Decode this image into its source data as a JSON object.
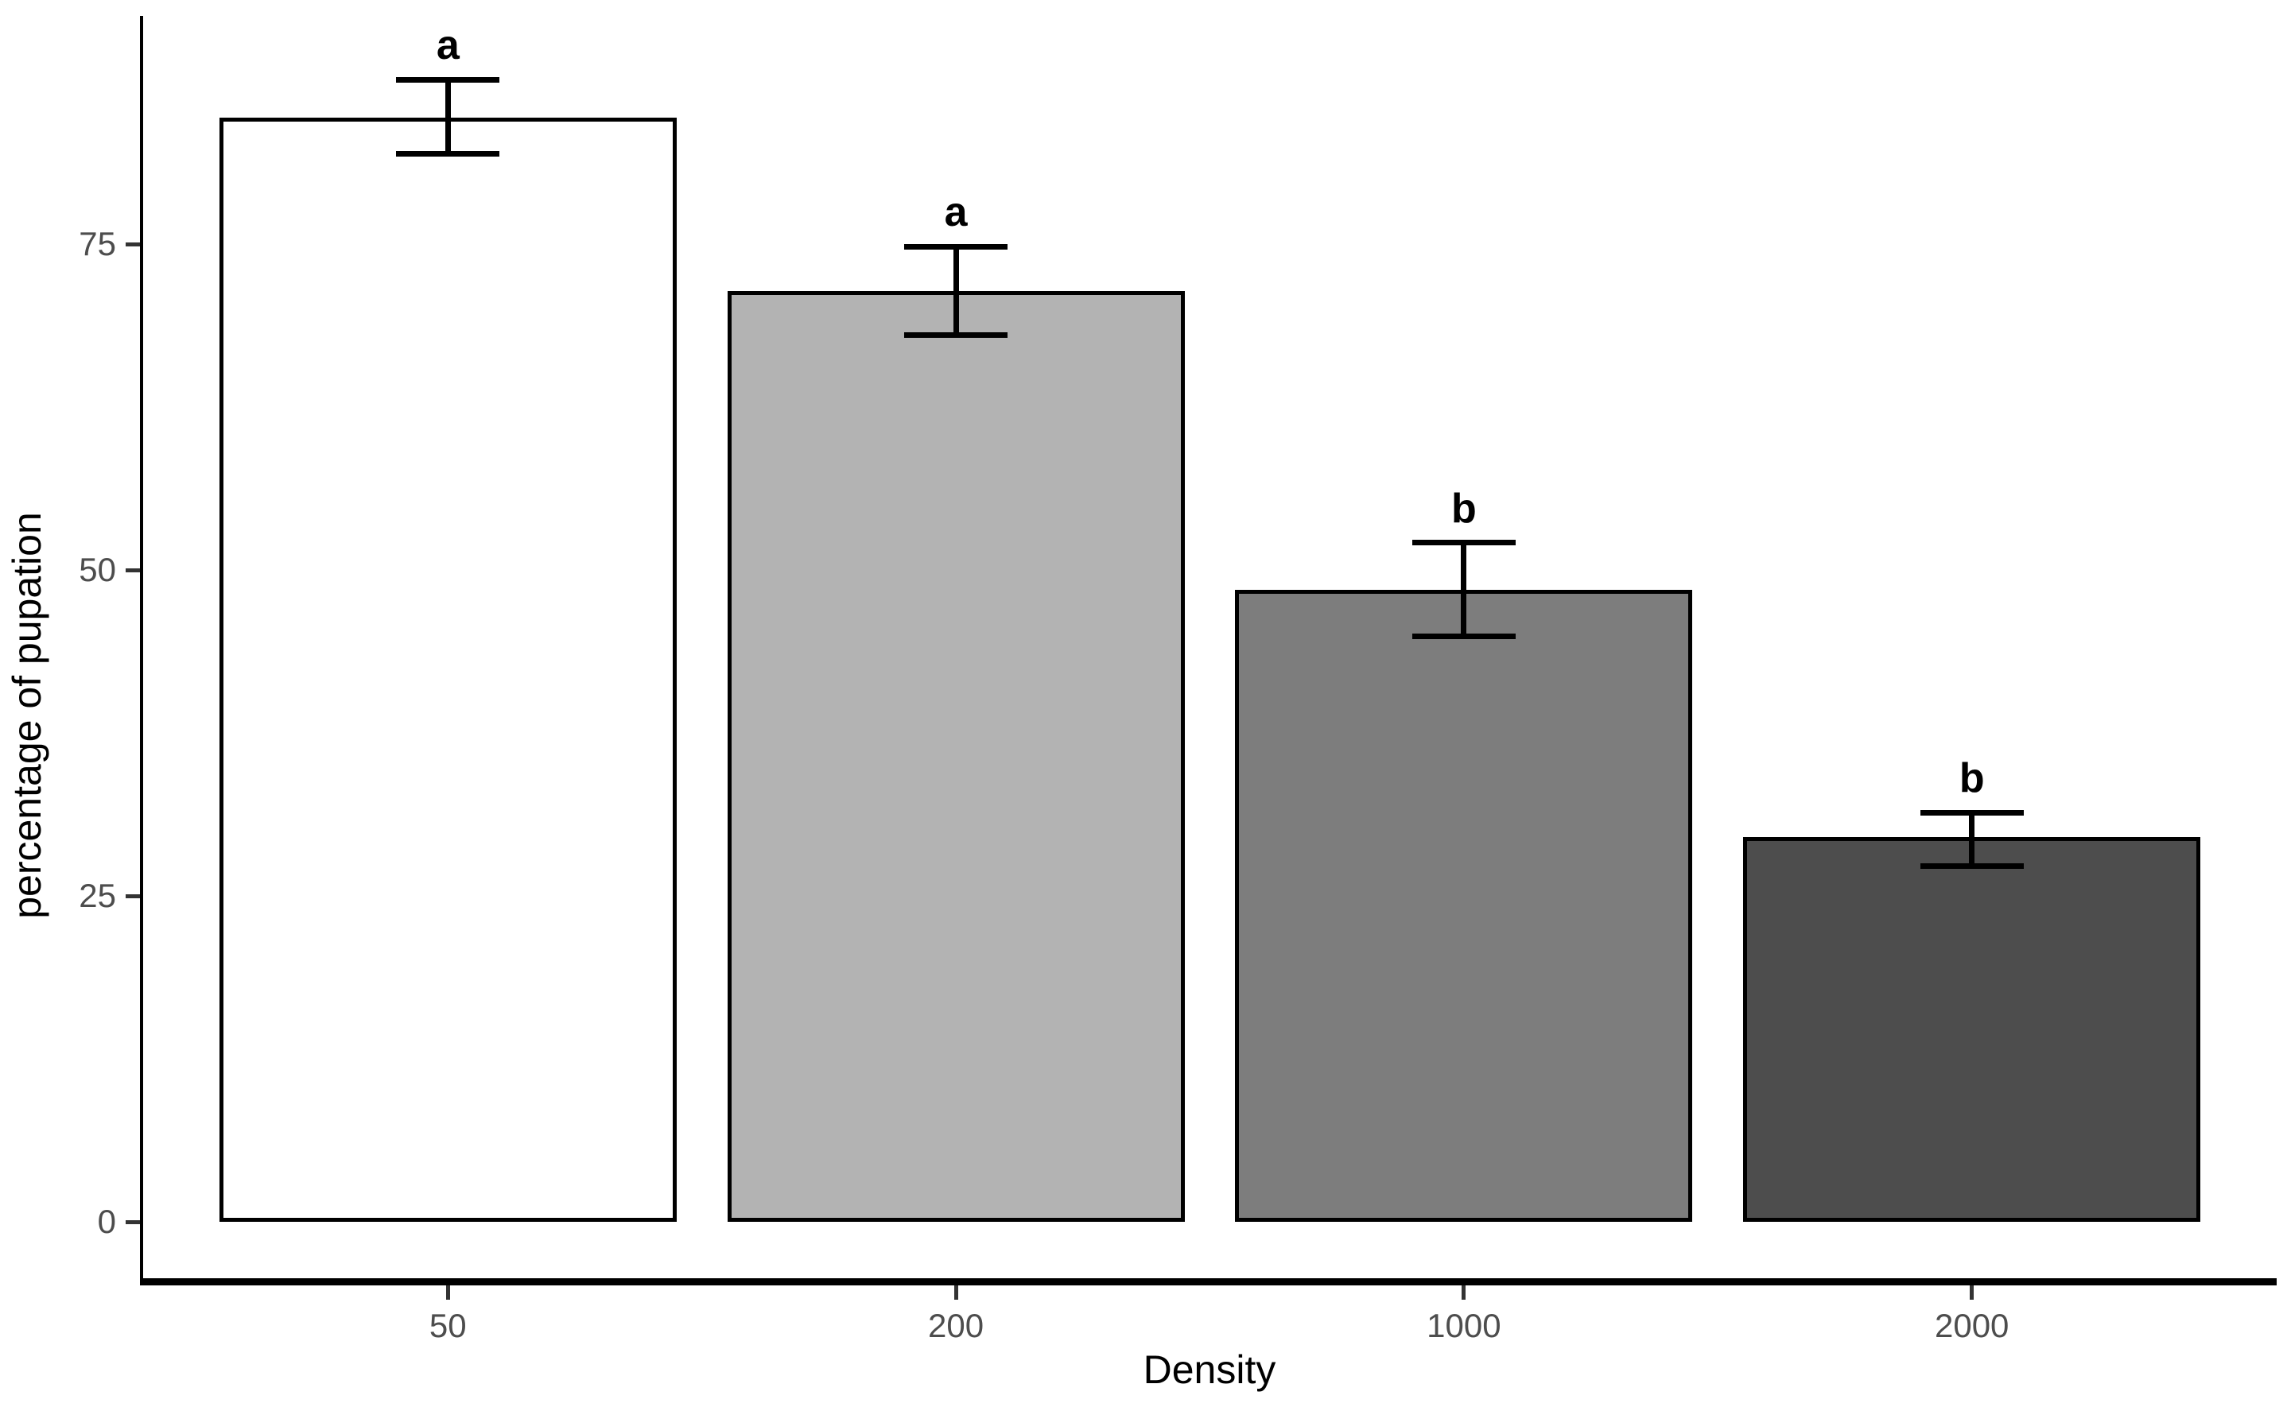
{
  "chart_data": {
    "type": "bar",
    "xlabel": "Density",
    "ylabel": "percentage of pupation",
    "categories": [
      "50",
      "200",
      "1000",
      "2000"
    ],
    "values": [
      84.7,
      71.4,
      48.5,
      29.5
    ],
    "error_low": [
      81.9,
      68.0,
      44.9,
      27.3
    ],
    "error_high": [
      87.6,
      74.8,
      52.1,
      31.4
    ],
    "significance_letters": [
      "a",
      "a",
      "b",
      "b"
    ],
    "yticks": [
      0,
      25,
      50,
      75
    ],
    "ylim": [
      0,
      92.5
    ],
    "bar_width_fraction": 0.9,
    "grid": false,
    "legend": false,
    "colors": {
      "bar_fills": [
        "#ffffff",
        "#b3b3b3",
        "#7d7d7d",
        "#4d4d4d"
      ],
      "bar_outline": "#000000",
      "error_bar": "#000000",
      "axis_line": "#000000",
      "tick_mark": "#333333",
      "tick_label": "#4d4d4d",
      "axis_title": "#000000",
      "background": "#ffffff"
    }
  }
}
